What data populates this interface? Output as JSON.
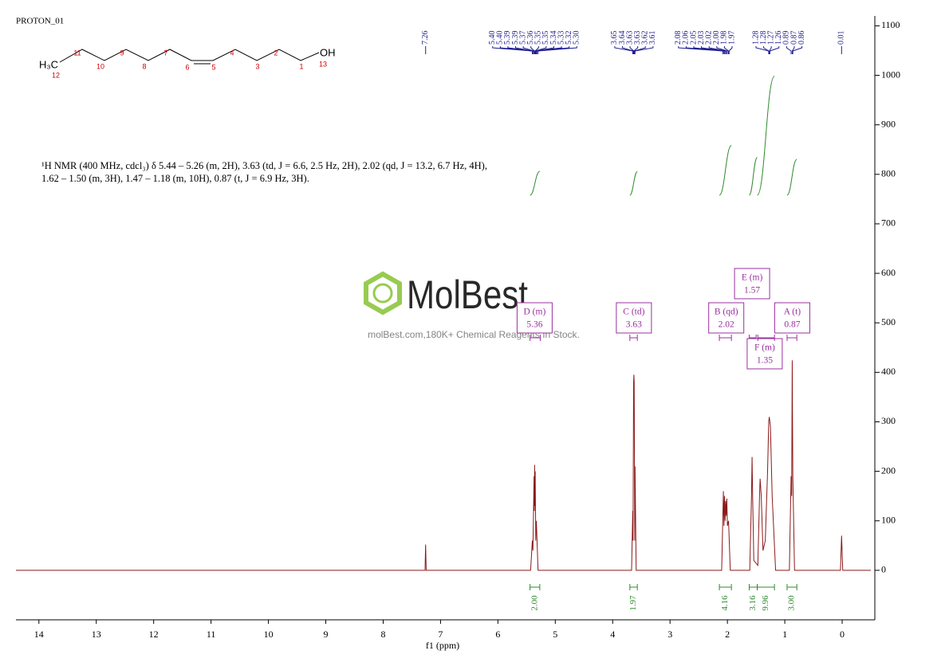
{
  "chart_data": {
    "type": "nmr",
    "title": "PROTON_01",
    "x_label": "f1 (ppm)",
    "xlim": [
      14.4,
      -0.5
    ],
    "xticks": [
      14,
      13,
      12,
      11,
      10,
      9,
      8,
      7,
      6,
      5,
      4,
      3,
      2,
      1,
      0
    ],
    "ylim": [
      -100,
      1120
    ],
    "yticks": [
      0,
      100,
      200,
      300,
      400,
      500,
      600,
      700,
      800,
      900,
      1000,
      1100
    ],
    "spectrum": {
      "color": "#8b1a1a",
      "x": [
        14.4,
        7.27,
        7.26,
        7.25,
        5.43,
        5.4,
        5.39,
        5.37,
        5.365,
        5.36,
        5.355,
        5.35,
        5.34,
        5.33,
        5.3,
        3.67,
        3.65,
        3.645,
        3.635,
        3.63,
        3.625,
        3.615,
        3.61,
        3.59,
        2.1,
        2.07,
        2.06,
        2.05,
        2.04,
        2.03,
        2.02,
        2.01,
        2.0,
        1.98,
        1.95,
        1.61,
        1.58,
        1.57,
        1.56,
        1.54,
        1.47,
        1.44,
        1.43,
        1.41,
        1.38,
        1.34,
        1.3,
        1.28,
        1.27,
        1.25,
        1.22,
        1.16,
        0.92,
        0.89,
        0.88,
        0.87,
        0.865,
        0.86,
        0.83,
        0.03,
        0.01,
        -0.01,
        -0.5
      ],
      "values": [
        0,
        0,
        52,
        0,
        0,
        60,
        40,
        190,
        120,
        213,
        130,
        200,
        60,
        100,
        0,
        0,
        120,
        60,
        380,
        395,
        380,
        60,
        210,
        0,
        0,
        160,
        90,
        150,
        100,
        140,
        110,
        145,
        90,
        100,
        0,
        0,
        150,
        229,
        150,
        20,
        10,
        150,
        185,
        150,
        40,
        60,
        200,
        300,
        310,
        290,
        150,
        0,
        0,
        190,
        150,
        424,
        300,
        190,
        0,
        0,
        70,
        0,
        0
      ]
    },
    "peak_label_color": "#1f1f8f",
    "peak_labels": [
      [
        7.26
      ],
      [
        {
          "value": 5.4,
          "label": "5.40"
        },
        {
          "value": 5.4,
          "label": "5.40"
        },
        5.39,
        5.39,
        5.37,
        5.36,
        5.35,
        5.35,
        5.34,
        5.33,
        5.32,
        {
          "value": 5.3,
          "label": "5.30"
        }
      ],
      [
        3.65,
        3.64,
        3.63,
        3.63,
        3.62,
        3.61
      ],
      [
        2.08,
        2.06,
        2.05,
        2.03,
        2.02,
        {
          "value": 2.0,
          "label": "2.00"
        },
        1.98,
        1.97
      ],
      [
        1.28,
        1.28,
        1.27,
        1.26,
        0.89,
        0.87,
        0.86
      ],
      [
        0.01
      ]
    ],
    "multiplet_color": "#9b2fa0",
    "multiplets": [
      {
        "label": "D (m)",
        "shift": 5.36,
        "range": [
          5.44,
          5.26
        ]
      },
      {
        "label": "C (td)",
        "shift": 3.63,
        "range": [
          3.7,
          3.57
        ]
      },
      {
        "label": "B (qd)",
        "shift": 2.02,
        "range": [
          2.14,
          1.93
        ]
      },
      {
        "label": "E (m)",
        "shift": 1.57,
        "range": [
          1.62,
          1.5
        ]
      },
      {
        "label": "A (t)",
        "shift": 0.87,
        "range": [
          0.96,
          0.79
        ]
      },
      {
        "label": "F (m)",
        "shift": 1.35,
        "range": [
          1.47,
          1.18
        ]
      }
    ],
    "integral_color": "#2e8b2e",
    "integrals": {
      "ranges": [
        [
          5.44,
          5.27
        ],
        [
          3.7,
          3.57
        ],
        [
          2.14,
          1.93
        ],
        [
          1.62,
          1.48
        ],
        [
          1.48,
          1.18
        ],
        [
          0.96,
          0.79
        ]
      ],
      "values": [
        2,
        1.97,
        4.16,
        3.16,
        9.96,
        3
      ],
      "value_labels": [
        "2.00",
        "1.97",
        "4.16",
        "3.16",
        "9.96",
        "3.00"
      ]
    }
  },
  "description": "¹H NMR (400 MHz, cdcl₃) δ 5.44 – 5.26 (m, 2H), 3.63 (td, J = 6.6, 2.5 Hz, 2H), 2.02 (qd, J = 13.2, 6.7 Hz, 4H), 1.62 – 1.50 (m, 3H), 1.47 – 1.18 (m, 10H), 0.87 (t, J = 6.9 Hz, 3H).",
  "molecule": {
    "methyl": "H₃C",
    "hydroxyl": "OH",
    "atoms": [
      "12",
      "11",
      "10",
      "9",
      "8",
      "7",
      "6",
      "5",
      "4",
      "3",
      "2",
      "1",
      "13"
    ]
  },
  "watermark": {
    "brand": "MolBest",
    "tagline": "molBest.com,180K+ Chemical Reagents In Stock."
  }
}
